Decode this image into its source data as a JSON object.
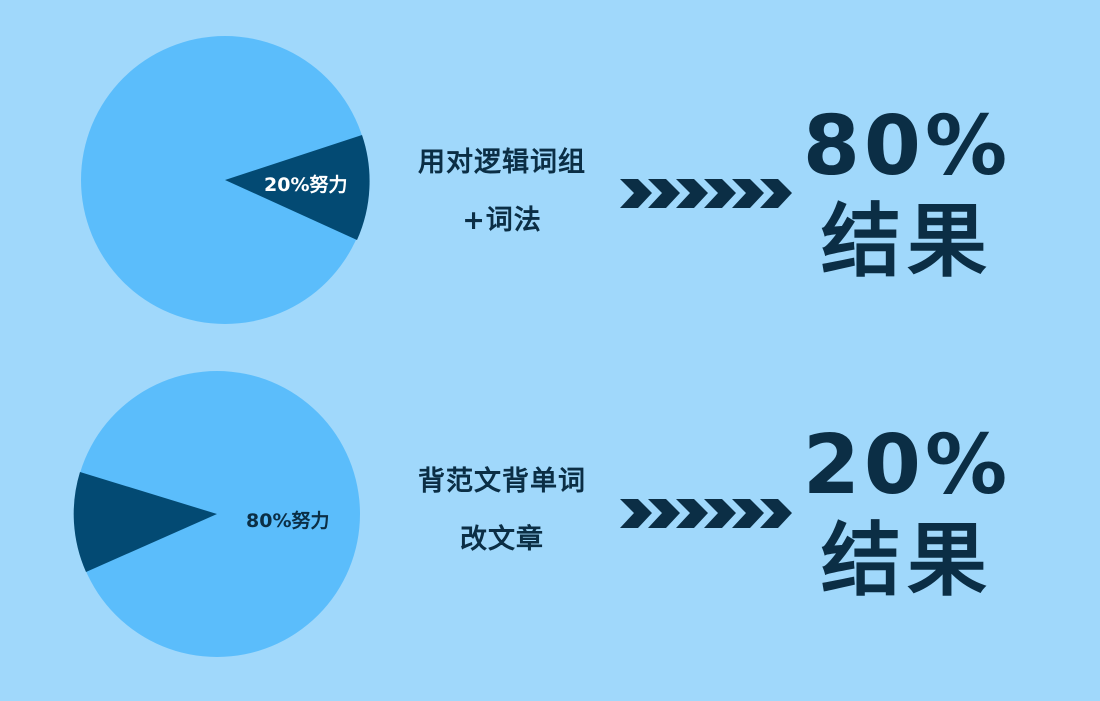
{
  "colors": {
    "background": "#A0D8FB",
    "pie_main": "#5BBDFB",
    "pie_wedge": "#034A73",
    "text": "#0B2E45"
  },
  "rows": [
    {
      "pie_label": "20%努力",
      "method_line1": "用对逻辑词组",
      "method_line2": "+词法",
      "result_pct": "80%",
      "result_label": "结果"
    },
    {
      "pie_label": "80%努力",
      "method_line1": "背范文背单词",
      "method_line2": "改文章",
      "result_pct": "20%",
      "result_label": "结果"
    }
  ],
  "arrow_icon": "chevrons-right-icon"
}
